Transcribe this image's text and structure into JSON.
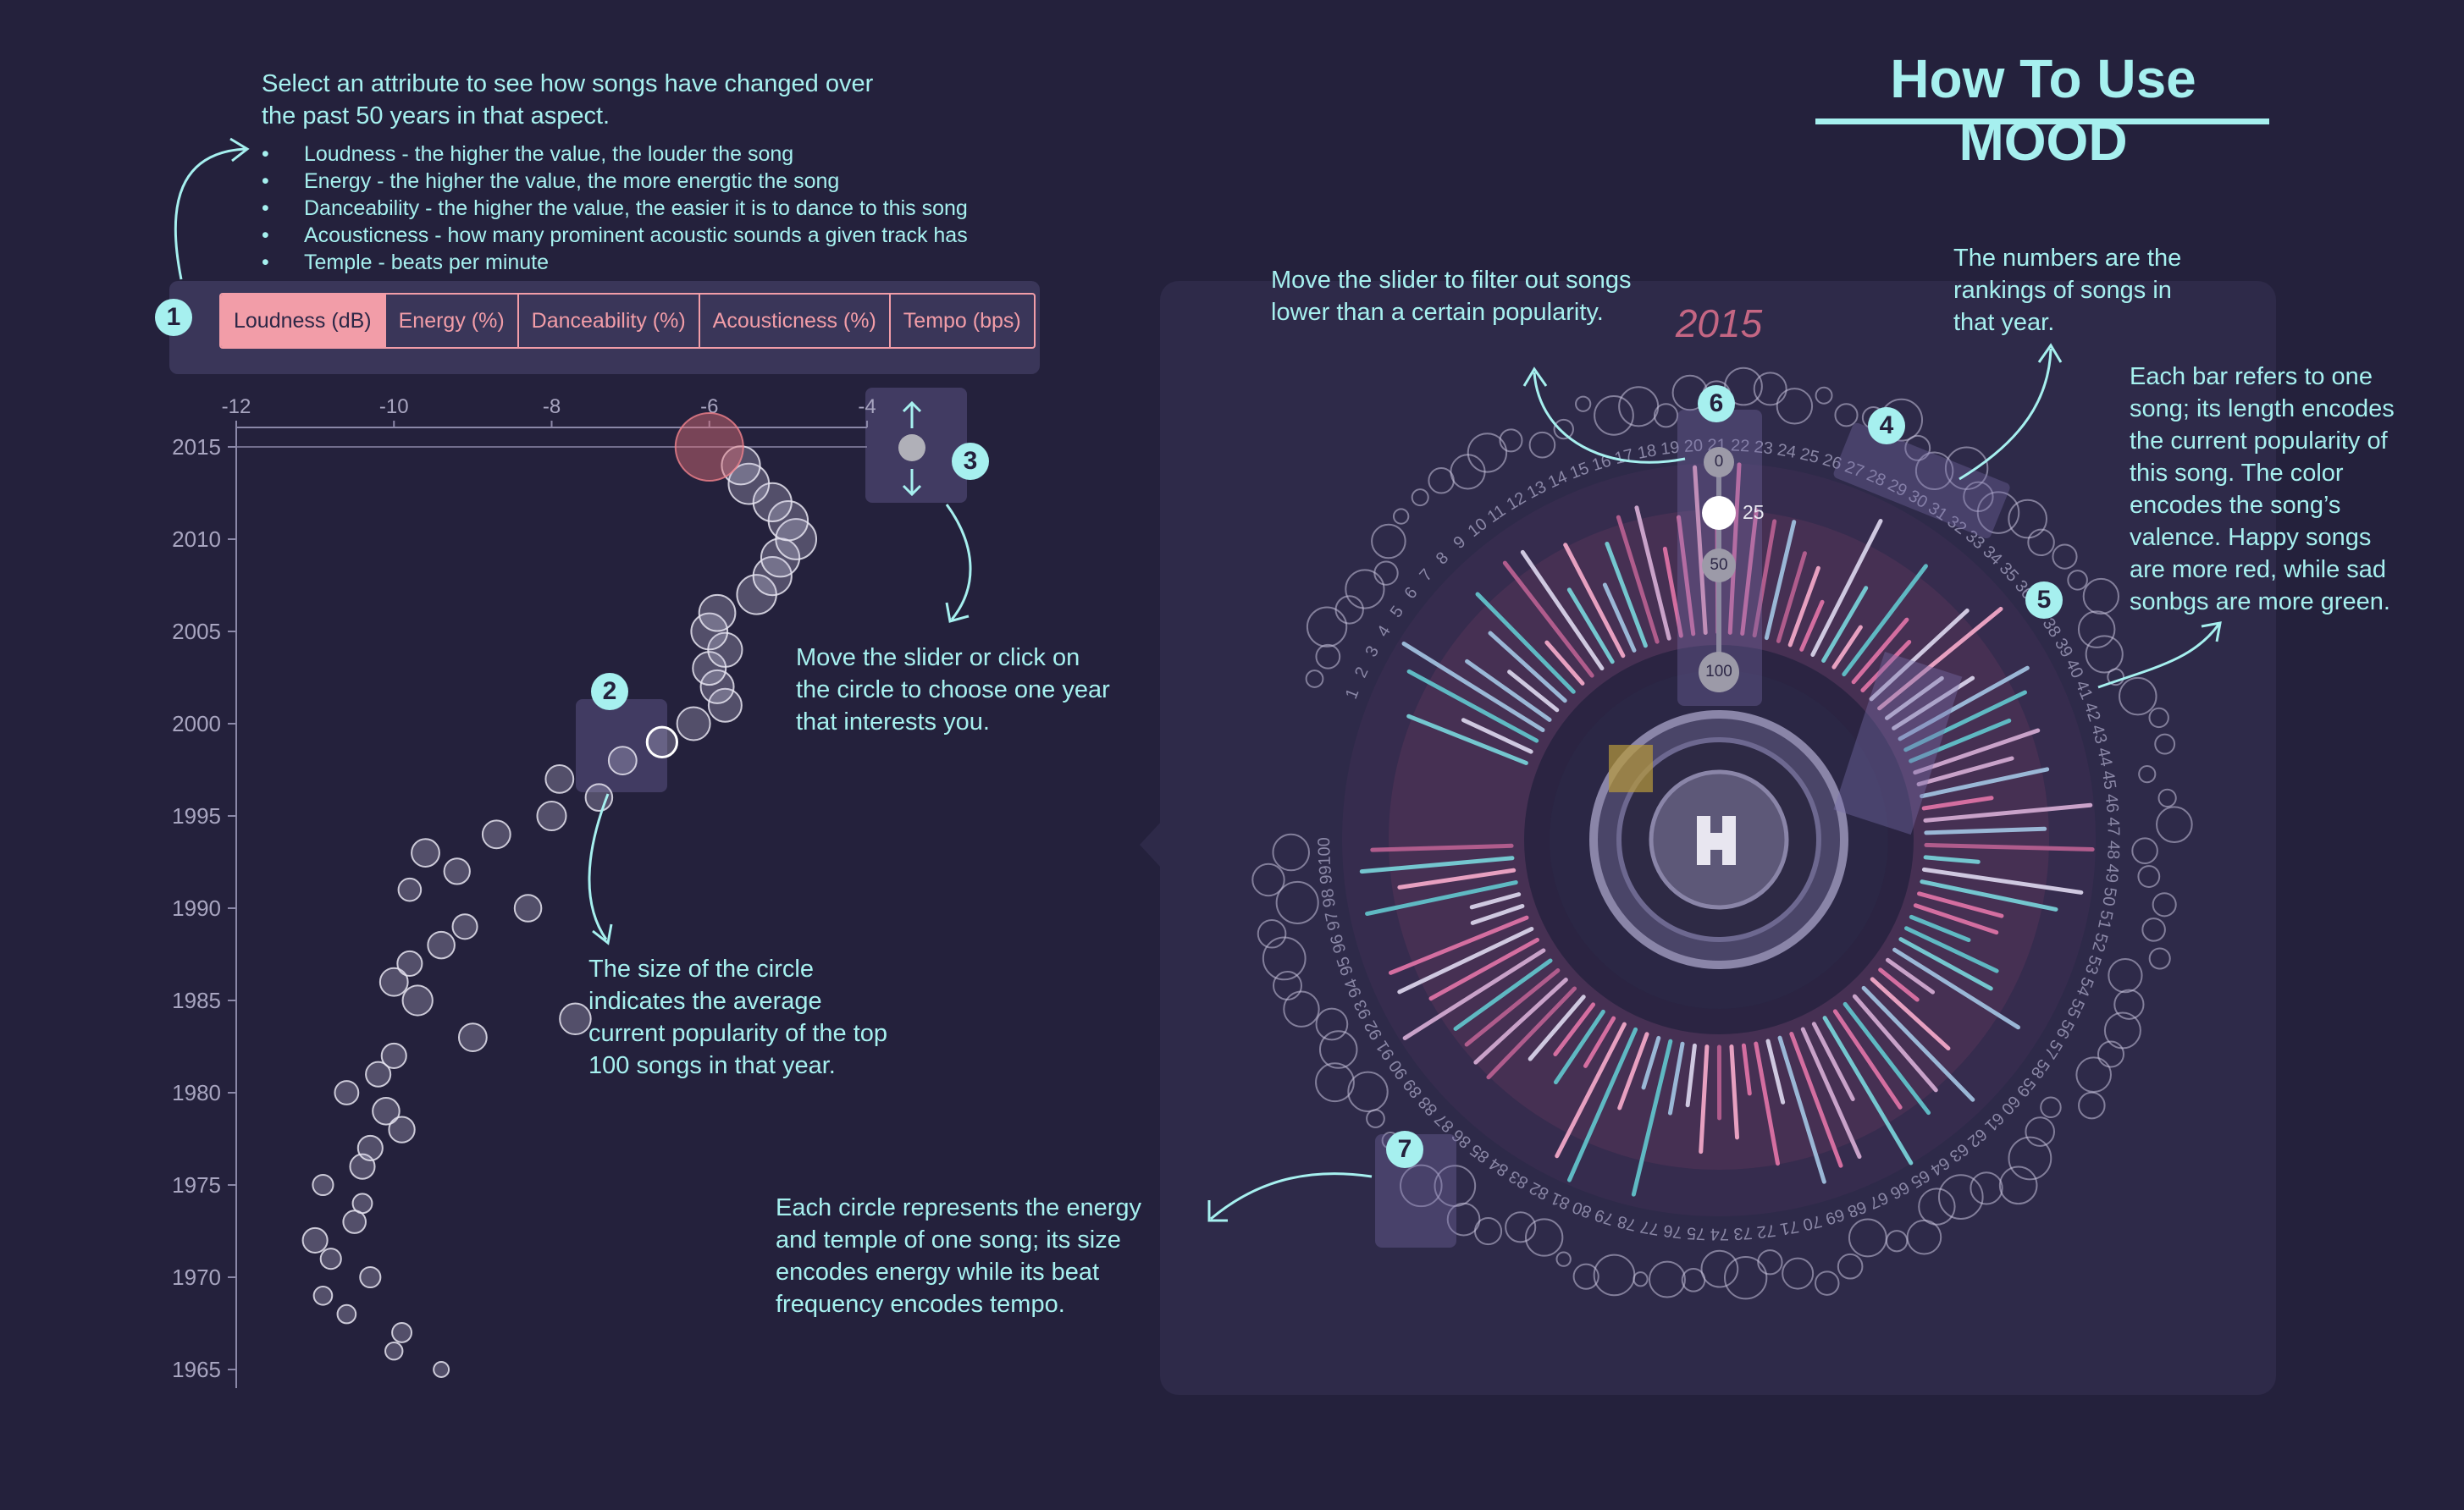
{
  "title": "How To Use MOOD",
  "intro": {
    "text": "Select an attribute to see how songs have changed over the past 50 years in that aspect.",
    "bullets": [
      "Loudness - the higher the value, the louder the song",
      "Energy - the higher the value, the more energtic the song",
      "Danceability - the higher the value, the easier it is to dance to this song",
      "Acousticness - how many prominent acoustic sounds a given track has",
      "Temple - beats per minute"
    ]
  },
  "tabs": [
    {
      "label": "Loudness (dB)",
      "active": true
    },
    {
      "label": "Energy (%)",
      "active": false
    },
    {
      "label": "Danceability (%)",
      "active": false
    },
    {
      "label": "Acousticness (%)",
      "active": false
    },
    {
      "label": "Tempo (bps)",
      "active": false
    }
  ],
  "badges": [
    "1",
    "2",
    "3",
    "4",
    "5",
    "6",
    "7"
  ],
  "annotations": {
    "size_note": "The size of the circle indicates the average current popularity of the top 100 songs in that year.",
    "year_note": "Move the slider or click on the circle to choose one year that interests you.",
    "energy_note": "Each circle represents the energy and temple of one song; its size encodes energy while its beat frequency encodes tempo.",
    "popularity_note": "Move the slider to filter out songs lower than a certain popularity.",
    "rankings_note": "The numbers are the rankings of songs in that year.",
    "bar_note": "Each bar refers to one song; its length encodes the current popularity of this song. The color encodes the song’s valence. Happy songs are more red, while sad sonbgs are more green."
  },
  "popularity_slider": {
    "ticks": [
      "0",
      "25",
      "50",
      "100"
    ],
    "value": 25,
    "value_label": "25"
  },
  "radial": {
    "year": "2015",
    "rank_count": 100
  },
  "colors": {
    "background": "#24213c",
    "accent": "#a6f0ef",
    "highlight": "#f29da8",
    "bar_happy": "#d46ea0",
    "bar_sad": "#5fb9c3"
  },
  "chart_data": {
    "type": "scatter",
    "xlabel": "",
    "ylabel": "",
    "x_ticks": [
      "-12",
      "-10",
      "-8",
      "-6",
      "-4"
    ],
    "y_ticks": [
      "2015",
      "2010",
      "2005",
      "2000",
      "1995",
      "1990",
      "1985",
      "1980",
      "1975",
      "1970",
      "1965"
    ],
    "xlim": [
      -12,
      -4
    ],
    "ylim": [
      1964,
      2016
    ],
    "selected_year": 2015,
    "points": [
      {
        "year": 1965,
        "loudness": -9.4,
        "popularity": 8
      },
      {
        "year": 1966,
        "loudness": -10.0,
        "popularity": 10
      },
      {
        "year": 1967,
        "loudness": -9.9,
        "popularity": 12
      },
      {
        "year": 1968,
        "loudness": -10.6,
        "popularity": 11
      },
      {
        "year": 1969,
        "loudness": -10.9,
        "popularity": 11
      },
      {
        "year": 1970,
        "loudness": -10.3,
        "popularity": 13
      },
      {
        "year": 1971,
        "loudness": -10.8,
        "popularity": 13
      },
      {
        "year": 1972,
        "loudness": -11.0,
        "popularity": 17
      },
      {
        "year": 1973,
        "loudness": -10.5,
        "popularity": 15
      },
      {
        "year": 1974,
        "loudness": -10.4,
        "popularity": 12
      },
      {
        "year": 1975,
        "loudness": -10.9,
        "popularity": 13
      },
      {
        "year": 1976,
        "loudness": -10.4,
        "popularity": 17
      },
      {
        "year": 1977,
        "loudness": -10.3,
        "popularity": 17
      },
      {
        "year": 1978,
        "loudness": -9.9,
        "popularity": 18
      },
      {
        "year": 1979,
        "loudness": -10.1,
        "popularity": 19
      },
      {
        "year": 1980,
        "loudness": -10.6,
        "popularity": 16
      },
      {
        "year": 1981,
        "loudness": -10.2,
        "popularity": 17
      },
      {
        "year": 1982,
        "loudness": -10.0,
        "popularity": 17
      },
      {
        "year": 1983,
        "loudness": -9.0,
        "popularity": 20
      },
      {
        "year": 1984,
        "loudness": -7.7,
        "popularity": 23
      },
      {
        "year": 1985,
        "loudness": -9.7,
        "popularity": 22
      },
      {
        "year": 1986,
        "loudness": -10.0,
        "popularity": 20
      },
      {
        "year": 1987,
        "loudness": -9.8,
        "popularity": 17
      },
      {
        "year": 1988,
        "loudness": -9.4,
        "popularity": 19
      },
      {
        "year": 1989,
        "loudness": -9.1,
        "popularity": 17
      },
      {
        "year": 1990,
        "loudness": -8.3,
        "popularity": 19
      },
      {
        "year": 1991,
        "loudness": -9.8,
        "popularity": 15
      },
      {
        "year": 1992,
        "loudness": -9.2,
        "popularity": 18
      },
      {
        "year": 1993,
        "loudness": -9.6,
        "popularity": 20
      },
      {
        "year": 1994,
        "loudness": -8.7,
        "popularity": 20
      },
      {
        "year": 1995,
        "loudness": -8.0,
        "popularity": 21
      },
      {
        "year": 1996,
        "loudness": -7.4,
        "popularity": 19
      },
      {
        "year": 1997,
        "loudness": -7.9,
        "popularity": 20
      },
      {
        "year": 1998,
        "loudness": -7.1,
        "popularity": 20
      },
      {
        "year": 1999,
        "loudness": -6.6,
        "popularity": 22
      },
      {
        "year": 2000,
        "loudness": -6.2,
        "popularity": 25
      },
      {
        "year": 2001,
        "loudness": -5.8,
        "popularity": 25
      },
      {
        "year": 2002,
        "loudness": -5.9,
        "popularity": 25
      },
      {
        "year": 2003,
        "loudness": -6.0,
        "popularity": 25
      },
      {
        "year": 2004,
        "loudness": -5.8,
        "popularity": 26
      },
      {
        "year": 2005,
        "loudness": -6.0,
        "popularity": 28
      },
      {
        "year": 2006,
        "loudness": -5.9,
        "popularity": 28
      },
      {
        "year": 2007,
        "loudness": -5.4,
        "popularity": 31
      },
      {
        "year": 2008,
        "loudness": -5.2,
        "popularity": 30
      },
      {
        "year": 2009,
        "loudness": -5.1,
        "popularity": 30
      },
      {
        "year": 2010,
        "loudness": -4.9,
        "popularity": 32
      },
      {
        "year": 2011,
        "loudness": -5.0,
        "popularity": 31
      },
      {
        "year": 2012,
        "loudness": -5.2,
        "popularity": 30
      },
      {
        "year": 2013,
        "loudness": -5.5,
        "popularity": 32
      },
      {
        "year": 2014,
        "loudness": -5.6,
        "popularity": 30
      },
      {
        "year": 2015,
        "loudness": -6.0,
        "popularity": 38
      }
    ]
  }
}
